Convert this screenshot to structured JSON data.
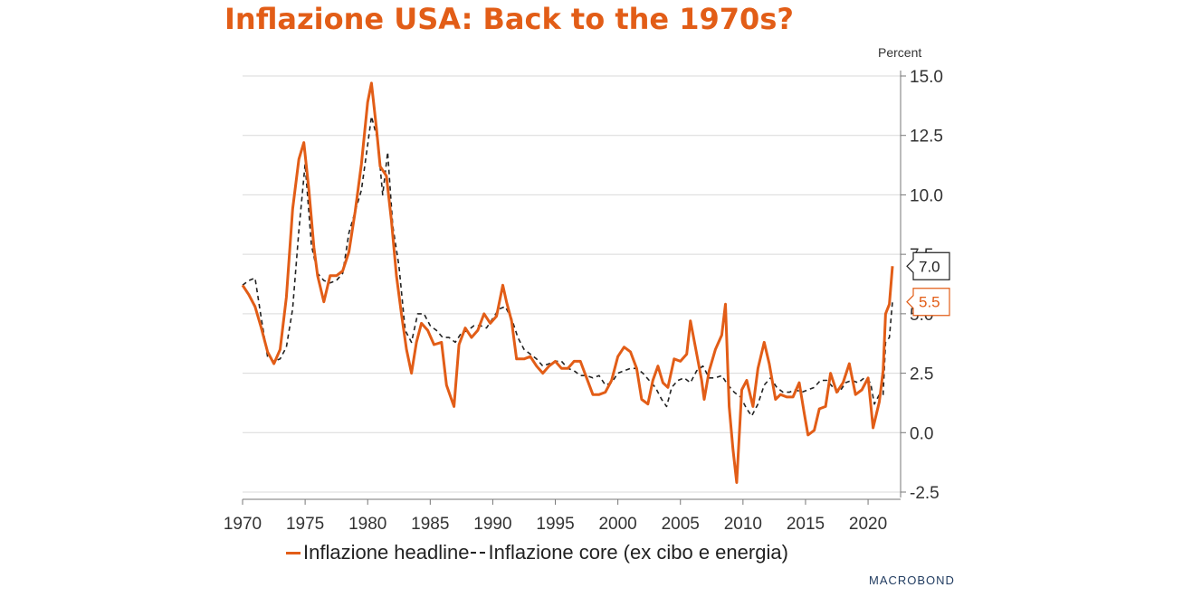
{
  "title": "Inflazione USA: Back to the 1970s?",
  "unit_label": "Percent",
  "brand": "MACROBOND",
  "colors": {
    "headline": "#e25d17",
    "core": "#222222",
    "grid": "#d9d9d9"
  },
  "chart_data": {
    "type": "line",
    "title": "Inflazione USA: Back to the 1970s?",
    "xlabel": "",
    "ylabel": "Percent",
    "xlim": [
      1970,
      2022.6
    ],
    "ylim": [
      -2.5,
      15
    ],
    "x_ticks": [
      "1970",
      "1975",
      "1980",
      "1985",
      "1990",
      "1995",
      "2000",
      "2005",
      "2010",
      "2015",
      "2020"
    ],
    "y_ticks": [
      "15.0",
      "12.5",
      "10.0",
      "7.5",
      "5.0",
      "2.5",
      "0.0",
      "-2.5"
    ],
    "grid": true,
    "legend_position": "bottom",
    "series": [
      {
        "name": "Inflazione headline",
        "style": "solid",
        "end_label": "7.0",
        "points": [
          [
            1970,
            6.2
          ],
          [
            1970.5,
            5.8
          ],
          [
            1971,
            5.3
          ],
          [
            1971.5,
            4.4
          ],
          [
            1972,
            3.4
          ],
          [
            1972.5,
            2.9
          ],
          [
            1973,
            3.5
          ],
          [
            1973.5,
            5.7
          ],
          [
            1974,
            9.4
          ],
          [
            1974.5,
            11.5
          ],
          [
            1974.9,
            12.2
          ],
          [
            1975.3,
            10.2
          ],
          [
            1975.7,
            7.8
          ],
          [
            1976,
            6.6
          ],
          [
            1976.5,
            5.5
          ],
          [
            1977,
            6.6
          ],
          [
            1977.5,
            6.6
          ],
          [
            1978,
            6.8
          ],
          [
            1978.5,
            7.6
          ],
          [
            1979,
            9.3
          ],
          [
            1979.5,
            11.3
          ],
          [
            1980,
            13.9
          ],
          [
            1980.3,
            14.7
          ],
          [
            1980.7,
            12.8
          ],
          [
            1981,
            11.2
          ],
          [
            1981.5,
            10.8
          ],
          [
            1981.9,
            8.9
          ],
          [
            1982.3,
            6.6
          ],
          [
            1982.7,
            5.0
          ],
          [
            1983.1,
            3.5
          ],
          [
            1983.5,
            2.5
          ],
          [
            1983.9,
            3.8
          ],
          [
            1984.3,
            4.6
          ],
          [
            1984.8,
            4.3
          ],
          [
            1985.3,
            3.7
          ],
          [
            1985.9,
            3.8
          ],
          [
            1986.3,
            2.0
          ],
          [
            1986.7,
            1.4
          ],
          [
            1986.9,
            1.1
          ],
          [
            1987.3,
            3.7
          ],
          [
            1987.8,
            4.4
          ],
          [
            1988.3,
            4.0
          ],
          [
            1988.8,
            4.3
          ],
          [
            1989.3,
            5.0
          ],
          [
            1989.8,
            4.6
          ],
          [
            1990.3,
            4.9
          ],
          [
            1990.8,
            6.2
          ],
          [
            1991.1,
            5.5
          ],
          [
            1991.5,
            4.7
          ],
          [
            1991.9,
            3.1
          ],
          [
            1992.5,
            3.1
          ],
          [
            1993,
            3.2
          ],
          [
            1993.5,
            2.8
          ],
          [
            1994,
            2.5
          ],
          [
            1994.5,
            2.8
          ],
          [
            1995,
            3.0
          ],
          [
            1995.5,
            2.7
          ],
          [
            1996,
            2.7
          ],
          [
            1996.5,
            3.0
          ],
          [
            1997,
            3.0
          ],
          [
            1997.5,
            2.3
          ],
          [
            1998,
            1.6
          ],
          [
            1998.5,
            1.6
          ],
          [
            1999,
            1.7
          ],
          [
            1999.5,
            2.2
          ],
          [
            2000,
            3.2
          ],
          [
            2000.5,
            3.6
          ],
          [
            2001,
            3.4
          ],
          [
            2001.5,
            2.7
          ],
          [
            2001.9,
            1.4
          ],
          [
            2002.4,
            1.2
          ],
          [
            2002.8,
            2.2
          ],
          [
            2003.2,
            2.8
          ],
          [
            2003.6,
            2.1
          ],
          [
            2004,
            1.9
          ],
          [
            2004.5,
            3.1
          ],
          [
            2005,
            3.0
          ],
          [
            2005.5,
            3.3
          ],
          [
            2005.8,
            4.7
          ],
          [
            2006.2,
            3.6
          ],
          [
            2006.7,
            2.2
          ],
          [
            2006.9,
            1.4
          ],
          [
            2007.3,
            2.6
          ],
          [
            2007.8,
            3.5
          ],
          [
            2008.3,
            4.1
          ],
          [
            2008.6,
            5.4
          ],
          [
            2008.9,
            1.1
          ],
          [
            2009.2,
            -0.7
          ],
          [
            2009.5,
            -2.1
          ],
          [
            2009.9,
            1.8
          ],
          [
            2010.3,
            2.2
          ],
          [
            2010.8,
            1.1
          ],
          [
            2011.2,
            2.7
          ],
          [
            2011.7,
            3.8
          ],
          [
            2012.1,
            2.9
          ],
          [
            2012.6,
            1.4
          ],
          [
            2013,
            1.6
          ],
          [
            2013.5,
            1.5
          ],
          [
            2014,
            1.5
          ],
          [
            2014.5,
            2.1
          ],
          [
            2014.9,
            0.8
          ],
          [
            2015.2,
            -0.1
          ],
          [
            2015.7,
            0.1
          ],
          [
            2016.1,
            1.0
          ],
          [
            2016.6,
            1.1
          ],
          [
            2017,
            2.5
          ],
          [
            2017.5,
            1.7
          ],
          [
            2018,
            2.1
          ],
          [
            2018.5,
            2.9
          ],
          [
            2019,
            1.6
          ],
          [
            2019.5,
            1.8
          ],
          [
            2020,
            2.3
          ],
          [
            2020.4,
            0.2
          ],
          [
            2020.9,
            1.3
          ],
          [
            2021.2,
            2.6
          ],
          [
            2021.4,
            5.0
          ],
          [
            2021.7,
            5.4
          ],
          [
            2021.95,
            7.0
          ]
        ]
      },
      {
        "name": "Inflazione core (ex cibo e energia)",
        "style": "dashed",
        "end_label": "5.5",
        "points": [
          [
            1970,
            6.2
          ],
          [
            1970.5,
            6.4
          ],
          [
            1971,
            6.5
          ],
          [
            1971.5,
            4.8
          ],
          [
            1972,
            3.2
          ],
          [
            1972.5,
            3.0
          ],
          [
            1973,
            3.1
          ],
          [
            1973.5,
            3.6
          ],
          [
            1974,
            5.2
          ],
          [
            1974.5,
            8.5
          ],
          [
            1975,
            11.3
          ],
          [
            1975.5,
            7.9
          ],
          [
            1976,
            6.7
          ],
          [
            1976.5,
            6.4
          ],
          [
            1977,
            6.3
          ],
          [
            1977.5,
            6.4
          ],
          [
            1978,
            6.7
          ],
          [
            1978.5,
            8.4
          ],
          [
            1979,
            9.3
          ],
          [
            1979.5,
            10.2
          ],
          [
            1980,
            12.1
          ],
          [
            1980.3,
            13.3
          ],
          [
            1980.8,
            12.3
          ],
          [
            1981.2,
            10.0
          ],
          [
            1981.6,
            11.8
          ],
          [
            1982,
            8.7
          ],
          [
            1982.5,
            7.0
          ],
          [
            1983,
            4.3
          ],
          [
            1983.5,
            3.8
          ],
          [
            1984,
            5.0
          ],
          [
            1984.5,
            5.0
          ],
          [
            1985,
            4.5
          ],
          [
            1985.5,
            4.3
          ],
          [
            1986,
            4.0
          ],
          [
            1986.5,
            4.0
          ],
          [
            1987,
            3.8
          ],
          [
            1987.5,
            4.2
          ],
          [
            1988,
            4.3
          ],
          [
            1988.5,
            4.5
          ],
          [
            1989,
            4.5
          ],
          [
            1989.5,
            4.4
          ],
          [
            1990,
            4.8
          ],
          [
            1990.5,
            5.2
          ],
          [
            1991,
            5.3
          ],
          [
            1991.5,
            4.8
          ],
          [
            1992,
            4.0
          ],
          [
            1992.5,
            3.5
          ],
          [
            1993,
            3.3
          ],
          [
            1993.5,
            3.1
          ],
          [
            1994,
            2.8
          ],
          [
            1994.5,
            2.9
          ],
          [
            1995,
            3.0
          ],
          [
            1995.5,
            3.0
          ],
          [
            1996,
            2.7
          ],
          [
            1996.5,
            2.6
          ],
          [
            1997,
            2.4
          ],
          [
            1997.5,
            2.4
          ],
          [
            1998,
            2.3
          ],
          [
            1998.5,
            2.4
          ],
          [
            1999,
            2.0
          ],
          [
            1999.5,
            2.1
          ],
          [
            2000,
            2.5
          ],
          [
            2000.5,
            2.6
          ],
          [
            2001,
            2.7
          ],
          [
            2001.5,
            2.7
          ],
          [
            2002,
            2.5
          ],
          [
            2002.5,
            2.2
          ],
          [
            2003,
            1.9
          ],
          [
            2003.5,
            1.4
          ],
          [
            2003.9,
            1.1
          ],
          [
            2004.3,
            1.9
          ],
          [
            2004.8,
            2.2
          ],
          [
            2005.3,
            2.3
          ],
          [
            2005.8,
            2.1
          ],
          [
            2006.3,
            2.6
          ],
          [
            2006.8,
            2.8
          ],
          [
            2007.3,
            2.3
          ],
          [
            2007.8,
            2.3
          ],
          [
            2008.3,
            2.4
          ],
          [
            2008.8,
            2.0
          ],
          [
            2009.3,
            1.7
          ],
          [
            2009.8,
            1.5
          ],
          [
            2010.3,
            1.0
          ],
          [
            2010.7,
            0.7
          ],
          [
            2011.2,
            1.2
          ],
          [
            2011.7,
            2.0
          ],
          [
            2012.2,
            2.3
          ],
          [
            2012.7,
            1.9
          ],
          [
            2013.2,
            1.7
          ],
          [
            2013.7,
            1.7
          ],
          [
            2014.2,
            1.8
          ],
          [
            2014.7,
            1.7
          ],
          [
            2015.2,
            1.8
          ],
          [
            2015.7,
            1.9
          ],
          [
            2016.2,
            2.2
          ],
          [
            2016.7,
            2.2
          ],
          [
            2017.2,
            1.9
          ],
          [
            2017.7,
            1.7
          ],
          [
            2018.2,
            2.1
          ],
          [
            2018.7,
            2.2
          ],
          [
            2019.2,
            2.1
          ],
          [
            2019.7,
            2.3
          ],
          [
            2020.2,
            2.1
          ],
          [
            2020.5,
            1.2
          ],
          [
            2020.9,
            1.6
          ],
          [
            2021.2,
            1.6
          ],
          [
            2021.4,
            3.8
          ],
          [
            2021.7,
            4.0
          ],
          [
            2021.95,
            5.5
          ]
        ]
      }
    ]
  }
}
